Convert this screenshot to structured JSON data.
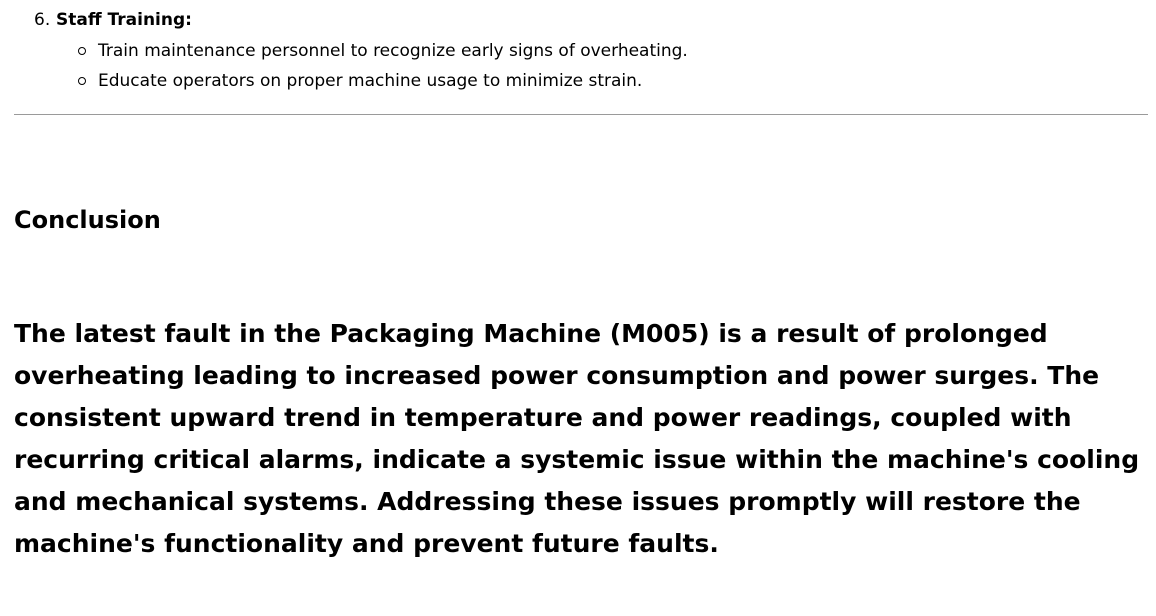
{
  "steps": [
    {
      "number": "6.",
      "title": "Staff Training:",
      "bullets": [
        "Train maintenance personnel to recognize early signs of overheating.",
        "Educate operators on proper machine usage to minimize strain."
      ]
    }
  ],
  "conclusion": {
    "heading": "Conclusion",
    "body": "The latest fault in the Packaging Machine (M005) is a result of prolonged overheating leading to increased power consumption and power surges. The consistent upward trend in temperature and power readings, coupled with recurring critical alarms, indicate a systemic issue within the machine's cooling and mechanical systems. Addressing these issues promptly will restore the machine's functionality and prevent future faults."
  }
}
